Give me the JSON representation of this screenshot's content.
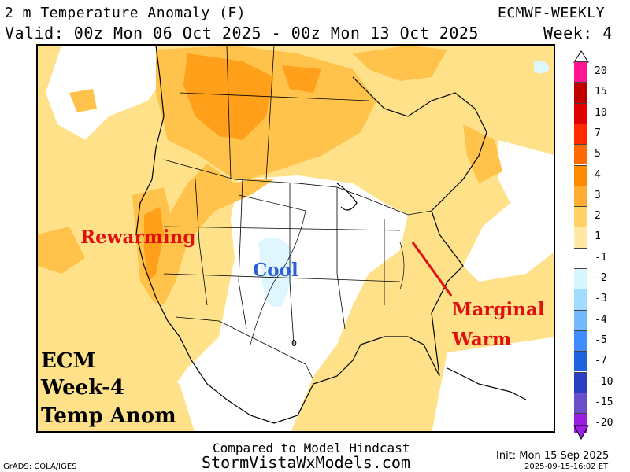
{
  "header": {
    "title": "2 m Temperature Anomaly (F)",
    "valid": "Valid: 00z Mon 06 Oct 2025 - 00z Mon 13 Oct 2025",
    "model": "ECMWF-WEEKLY",
    "week": "Week: 4"
  },
  "annotations": {
    "rewarming": "Rewarming",
    "cool": "Cool",
    "marginal": "Marginal",
    "warm": "Warm",
    "ecm": "ECM",
    "week4": "Week-4",
    "temp_anom": "Temp Anom",
    "contour_zero": "0"
  },
  "legend": {
    "labels": [
      "20",
      "15",
      "10",
      "7",
      "5",
      "4",
      "3",
      "2",
      "1",
      "-1",
      "-2",
      "-3",
      "-4",
      "-5",
      "-7",
      "-10",
      "-15",
      "-20"
    ],
    "colors": [
      "#ff1493",
      "#c00000",
      "#e00000",
      "#ff2a00",
      "#ff6a00",
      "#ff8c00",
      "#ffad33",
      "#ffd166",
      "#ffe9a3",
      "#ffffff",
      "#d6f5ff",
      "#9fdcff",
      "#74b9ff",
      "#3f8cff",
      "#1f62e0",
      "#2a3fbf",
      "#6a4fc8",
      "#9b1de0"
    ]
  },
  "colors": {
    "anomaly_1_2": "#ffe18a",
    "anomaly_2_3": "#ffc24a",
    "anomaly_3_4": "#ff9f1a",
    "near_normal": "#ffffff",
    "cool_light": "#dff6ff",
    "annotation_red": "#e01010",
    "annotation_blue": "#2c5fd6"
  },
  "footer": {
    "compared": "Compared to Model Hindcast",
    "site": "StormVistaWxModels.com",
    "grads": "GrADS: COLA/IGES",
    "init": "Init: Mon 15 Sep 2025",
    "stamp": "2025-09-15-16:02 ET"
  }
}
